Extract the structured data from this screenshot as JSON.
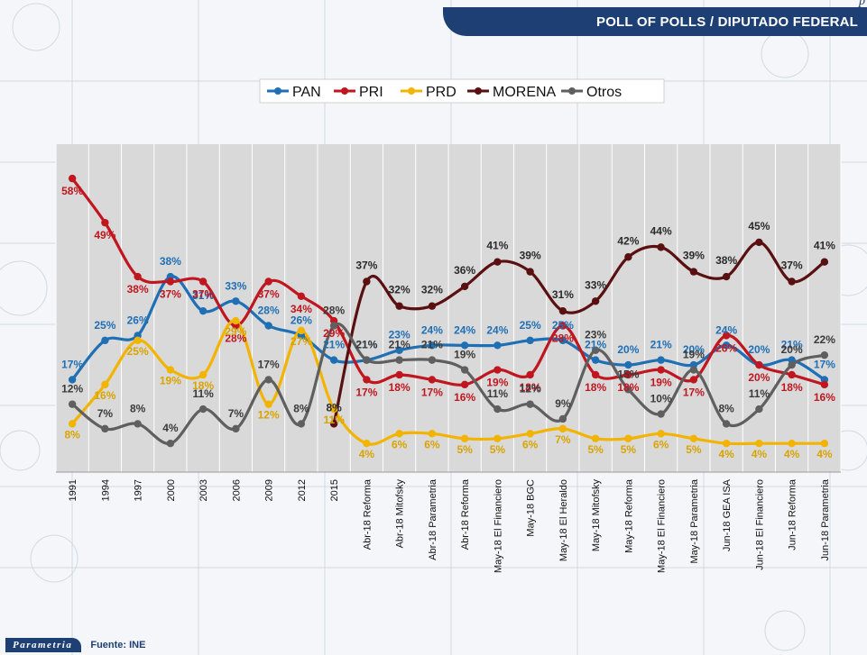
{
  "header": {
    "title": "POLL OF POLLS / DIPUTADO FEDERAL",
    "corner_mark": "p"
  },
  "footer": {
    "logo": "Parametria",
    "source": "Fuente: INE"
  },
  "colors": {
    "PAN": "#1f6fb5",
    "PRI": "#c0161f",
    "PRD": "#f2b400",
    "MORENA": "#5a0f10",
    "Otros": "#5f5f5f",
    "plot_bg": "#d9d9d9",
    "header_bg": "#1d3f73"
  },
  "chart_data": {
    "type": "line",
    "title": "",
    "xlabel": "",
    "ylabel": "",
    "ylim": [
      0,
      65
    ],
    "grid": "vertical",
    "legend_position": "top",
    "categories": [
      "1991",
      "1994",
      "1997",
      "2000",
      "2003",
      "2006",
      "2009",
      "2012",
      "2015",
      "Abr-18 Reforma",
      "Abr-18 Mitofsky",
      "Abr-18 Parametria",
      "Abr-18 Reforma",
      "May-18 El Financiero",
      "May-18 BGC",
      "May-18 El Heraldo",
      "May-18 Mitofsky",
      "May-18 Reforma",
      "May-18 El Financiero",
      "May-18 Parametria",
      "Jun-18 GEA ISA",
      "Jun-18 El Financiero",
      "Jun-18 Reforma",
      "Jun-18 Parametria"
    ],
    "series": [
      {
        "name": "PAN",
        "values": [
          17,
          25,
          26,
          38,
          31,
          33,
          28,
          26,
          21,
          21,
          23,
          24,
          24,
          24,
          25,
          25,
          21,
          20,
          21,
          20,
          24,
          20,
          21,
          17
        ]
      },
      {
        "name": "PRI",
        "values": [
          58,
          49,
          38,
          37,
          37,
          28,
          37,
          34,
          29,
          17,
          18,
          17,
          16,
          19,
          18,
          28,
          18,
          18,
          19,
          17,
          26,
          20,
          18,
          16
        ]
      },
      {
        "name": "PRD",
        "values": [
          8,
          16,
          25,
          19,
          18,
          29,
          12,
          27,
          11,
          4,
          6,
          6,
          5,
          5,
          6,
          7,
          5,
          5,
          6,
          5,
          4,
          4,
          4,
          4
        ]
      },
      {
        "name": "MORENA",
        "values": [
          null,
          null,
          null,
          null,
          null,
          null,
          null,
          null,
          8,
          37,
          32,
          32,
          36,
          41,
          39,
          31,
          33,
          42,
          44,
          39,
          38,
          45,
          37,
          41
        ]
      },
      {
        "name": "Otros",
        "values": [
          12,
          7,
          8,
          4,
          11,
          7,
          17,
          8,
          28,
          21,
          21,
          21,
          19,
          11,
          12,
          9,
          23,
          15,
          10,
          19,
          8,
          11,
          20,
          22
        ]
      }
    ],
    "data_labels": [
      [
        "17%",
        "25%",
        "26%",
        "38%",
        "31%",
        "33%",
        "28%",
        "26%",
        "21%",
        "21%",
        "23%",
        "24%",
        "24%",
        "24%",
        "25%",
        "25%",
        "21%",
        "20%",
        "21%",
        "20%",
        "24%",
        "20%",
        "21%",
        "17%"
      ],
      [
        "58%",
        "49%",
        "38%",
        "37%",
        "37%",
        "28%",
        "37%",
        "34%",
        "29%",
        "17%",
        "18%",
        "17%",
        "16%",
        "19%",
        "18%",
        "28%",
        "18%",
        "18%",
        "19%",
        "17%",
        "26%",
        "20%",
        "18%",
        "16%"
      ],
      [
        "8%",
        "16%",
        "25%",
        "19%",
        "18%",
        "29%",
        "12%",
        "27%",
        "11%",
        "4%",
        "6%",
        "6%",
        "5%",
        "5%",
        "6%",
        "7%",
        "5%",
        "5%",
        "6%",
        "5%",
        "4%",
        "4%",
        "4%",
        "4%"
      ],
      [
        null,
        null,
        null,
        null,
        null,
        null,
        null,
        null,
        "8%",
        "37%",
        "32%",
        "32%",
        "36%",
        "41%",
        "39%",
        "31%",
        "33%",
        "42%",
        "44%",
        "39%",
        "38%",
        "45%",
        "37%",
        "41%"
      ],
      [
        "12%",
        "7%",
        "8%",
        "4%",
        "11%",
        "7%",
        "17%",
        "8%",
        "28%",
        "21%",
        "21%",
        "21%",
        "19%",
        "11%",
        "12%",
        "9%",
        "23%",
        "15%",
        "10%",
        "19%",
        "8%",
        "11%",
        "20%",
        "22%"
      ]
    ]
  }
}
